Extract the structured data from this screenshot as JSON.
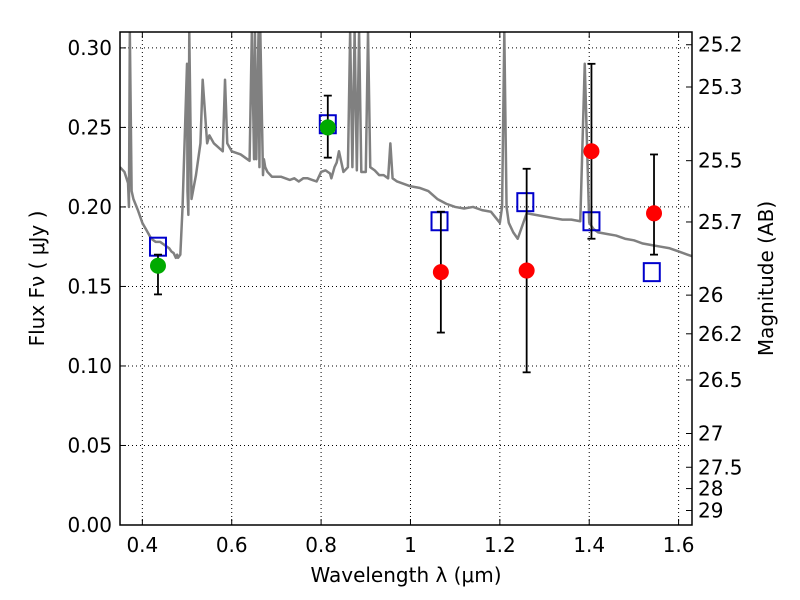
{
  "chart_data": {
    "type": "scatter",
    "xlabel": "Wavelength  λ (μm)",
    "ylabel": "Flux  Fν  ( μJy )",
    "ylabel_right": "Magnitude (AB)",
    "xlim": [
      0.35,
      1.63
    ],
    "ylim": [
      0.0,
      0.31
    ],
    "grid": true,
    "x_ticks": [
      {
        "value": 0.4,
        "label": "0.4"
      },
      {
        "value": 0.6,
        "label": "0.6"
      },
      {
        "value": 0.8,
        "label": "0.8"
      },
      {
        "value": 1.0,
        "label": "1"
      },
      {
        "value": 1.2,
        "label": "1.2"
      },
      {
        "value": 1.4,
        "label": "1.4"
      },
      {
        "value": 1.6,
        "label": "1.6"
      }
    ],
    "y_ticks": [
      {
        "value": 0.0,
        "label": "0.00"
      },
      {
        "value": 0.05,
        "label": "0.05"
      },
      {
        "value": 0.1,
        "label": "0.10"
      },
      {
        "value": 0.15,
        "label": "0.15"
      },
      {
        "value": 0.2,
        "label": "0.20"
      },
      {
        "value": 0.25,
        "label": "0.25"
      },
      {
        "value": 0.3,
        "label": "0.30"
      }
    ],
    "right_ticks": [
      {
        "mag": 25.2,
        "label": "25.2"
      },
      {
        "mag": 25.3,
        "label": "25.3"
      },
      {
        "mag": 25.5,
        "label": "25.5"
      },
      {
        "mag": 25.7,
        "label": "25.7"
      },
      {
        "mag": 26,
        "label": "26"
      },
      {
        "mag": 26.2,
        "label": "26.2"
      },
      {
        "mag": 26.5,
        "label": "26.5"
      },
      {
        "mag": 27,
        "label": "27"
      },
      {
        "mag": 27.5,
        "label": "27.5"
      },
      {
        "mag": 28,
        "label": "28"
      },
      {
        "mag": 29,
        "label": "29"
      }
    ],
    "series": [
      {
        "marker": "line",
        "color": "#808080",
        "x": [
          0.35,
          0.36,
          0.368,
          0.37,
          0.372,
          0.376,
          0.38,
          0.39,
          0.4,
          0.41,
          0.42,
          0.43,
          0.44,
          0.45,
          0.46,
          0.465,
          0.47,
          0.475,
          0.478,
          0.48,
          0.485,
          0.49,
          0.5,
          0.501,
          0.503,
          0.505,
          0.51,
          0.52,
          0.53,
          0.535,
          0.54,
          0.545,
          0.55,
          0.56,
          0.58,
          0.585,
          0.59,
          0.6,
          0.62,
          0.64,
          0.645,
          0.65,
          0.652,
          0.655,
          0.66,
          0.662,
          0.664,
          0.67,
          0.672,
          0.675,
          0.68,
          0.69,
          0.7,
          0.71,
          0.72,
          0.73,
          0.74,
          0.75,
          0.76,
          0.77,
          0.78,
          0.79,
          0.8,
          0.81,
          0.82,
          0.823,
          0.83,
          0.835,
          0.84,
          0.85,
          0.86,
          0.865,
          0.87,
          0.875,
          0.88,
          0.885,
          0.89,
          0.895,
          0.9,
          0.905,
          0.91,
          0.92,
          0.93,
          0.94,
          0.95,
          0.955,
          0.96,
          0.97,
          0.98,
          1.0,
          1.02,
          1.04,
          1.06,
          1.08,
          1.1,
          1.12,
          1.14,
          1.16,
          1.18,
          1.2,
          1.205,
          1.21,
          1.215,
          1.22,
          1.23,
          1.24,
          1.26,
          1.28,
          1.3,
          1.32,
          1.34,
          1.36,
          1.38,
          1.39,
          1.4,
          1.41,
          1.42,
          1.44,
          1.46,
          1.48,
          1.5,
          1.52,
          1.54,
          1.56,
          1.58,
          1.6,
          1.62,
          1.63
        ],
        "y": [
          0.225,
          0.222,
          0.215,
          0.2,
          0.31,
          0.21,
          0.205,
          0.198,
          0.19,
          0.185,
          0.18,
          0.178,
          0.178,
          0.176,
          0.174,
          0.172,
          0.171,
          0.168,
          0.17,
          0.168,
          0.17,
          0.2,
          0.29,
          0.21,
          0.195,
          0.31,
          0.205,
          0.22,
          0.24,
          0.28,
          0.26,
          0.24,
          0.245,
          0.24,
          0.235,
          0.28,
          0.24,
          0.235,
          0.233,
          0.229,
          0.31,
          0.23,
          0.31,
          0.23,
          0.31,
          0.225,
          0.31,
          0.22,
          0.23,
          0.225,
          0.222,
          0.219,
          0.219,
          0.219,
          0.218,
          0.217,
          0.218,
          0.216,
          0.218,
          0.218,
          0.217,
          0.216,
          0.222,
          0.223,
          0.221,
          0.218,
          0.225,
          0.228,
          0.235,
          0.222,
          0.225,
          0.31,
          0.225,
          0.31,
          0.223,
          0.31,
          0.222,
          0.222,
          0.222,
          0.31,
          0.225,
          0.223,
          0.22,
          0.22,
          0.218,
          0.24,
          0.218,
          0.216,
          0.215,
          0.213,
          0.212,
          0.21,
          0.205,
          0.202,
          0.2,
          0.199,
          0.2,
          0.198,
          0.197,
          0.19,
          0.2,
          0.31,
          0.2,
          0.19,
          0.184,
          0.18,
          0.196,
          0.195,
          0.194,
          0.193,
          0.192,
          0.192,
          0.191,
          0.29,
          0.19,
          0.186,
          0.184,
          0.183,
          0.182,
          0.18,
          0.179,
          0.177,
          0.176,
          0.175,
          0.174,
          0.172,
          0.17,
          0.169
        ]
      },
      {
        "marker": "open-square",
        "color": "#0000cc",
        "x": [
          0.435,
          0.815,
          1.065,
          1.257,
          1.405,
          1.54
        ],
        "y": [
          0.175,
          0.252,
          0.191,
          0.203,
          0.191,
          0.159
        ]
      },
      {
        "marker": "filled-circle",
        "color": "#00aa00",
        "x": [
          0.435,
          0.815
        ],
        "y": [
          0.163,
          0.25
        ],
        "yerr_low": [
          0.145,
          0.231
        ],
        "yerr_high": [
          0.17,
          0.27
        ]
      },
      {
        "marker": "filled-circle",
        "color": "#ff0000",
        "x": [
          1.068,
          1.26,
          1.405,
          1.545
        ],
        "y": [
          0.159,
          0.16,
          0.235,
          0.196
        ],
        "yerr_low": [
          0.121,
          0.096,
          0.18,
          0.17
        ],
        "yerr_high": [
          0.197,
          0.224,
          0.29,
          0.233
        ]
      }
    ]
  }
}
